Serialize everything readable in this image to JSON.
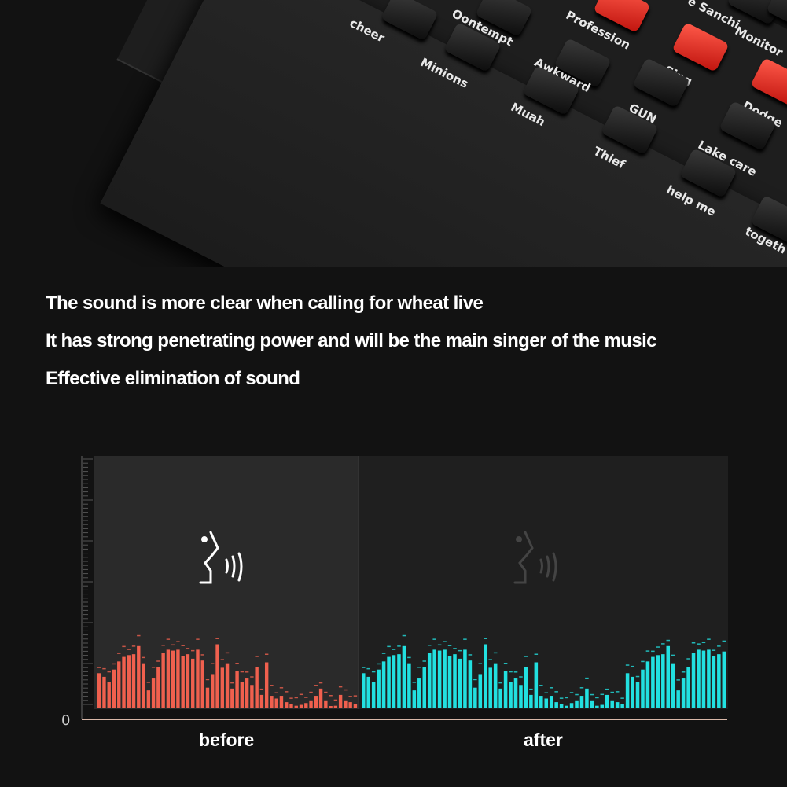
{
  "device": {
    "keys": [
      {
        "label": "cheer",
        "red": false
      },
      {
        "label": "Oontempt",
        "red": false
      },
      {
        "label": "Profession",
        "red": true
      },
      {
        "label": "e Sanchi",
        "red": false
      },
      {
        "label": "Monitor",
        "red": false
      },
      {
        "label": "Minions",
        "red": false
      },
      {
        "label": "Awkward",
        "red": false
      },
      {
        "label": "Sing",
        "red": true
      },
      {
        "label": "Dodge",
        "red": true
      },
      {
        "label": "Muah",
        "red": false
      },
      {
        "label": "GUN",
        "red": false
      },
      {
        "label": "Lake care",
        "red": false
      },
      {
        "label": "Thief",
        "red": false
      },
      {
        "label": "help me",
        "red": false
      },
      {
        "label": "togeth",
        "red": false
      }
    ]
  },
  "headline": {
    "lines": [
      "The sound is more clear when calling for wheat live",
      "It has strong penetrating power and will be the main singer of the music",
      "Effective elimination of sound"
    ]
  },
  "spectrum": {
    "zero_label": "0",
    "before_label": "before",
    "after_label": "after",
    "before_color": "#f0604e",
    "after_color": "#22e0e0",
    "icon": "speaking-head-icon",
    "before_levels": [
      38,
      34,
      28,
      42,
      51,
      56,
      58,
      59,
      68,
      49,
      19,
      33,
      45,
      60,
      64,
      63,
      64,
      57,
      59,
      54,
      64,
      52,
      22,
      37,
      70,
      44,
      49,
      21,
      40,
      28,
      33,
      25,
      45,
      14,
      50,
      13,
      10,
      13,
      6,
      4,
      2,
      3,
      5,
      8,
      13,
      21,
      8,
      1,
      2,
      14,
      8,
      6,
      4
    ],
    "after_levels": [
      38,
      34,
      28,
      42,
      51,
      56,
      58,
      59,
      68,
      49,
      19,
      33,
      45,
      60,
      64,
      63,
      64,
      57,
      59,
      54,
      64,
      52,
      22,
      37,
      70,
      44,
      49,
      21,
      40,
      28,
      33,
      25,
      45,
      14,
      50,
      13,
      10,
      13,
      6,
      4,
      2,
      5,
      8,
      13,
      21,
      8,
      2,
      3,
      14,
      8,
      6,
      4,
      38,
      34,
      28,
      42,
      51,
      56,
      58,
      59,
      68,
      49,
      19,
      33,
      45,
      60,
      64,
      63,
      64,
      57,
      59,
      62
    ]
  }
}
